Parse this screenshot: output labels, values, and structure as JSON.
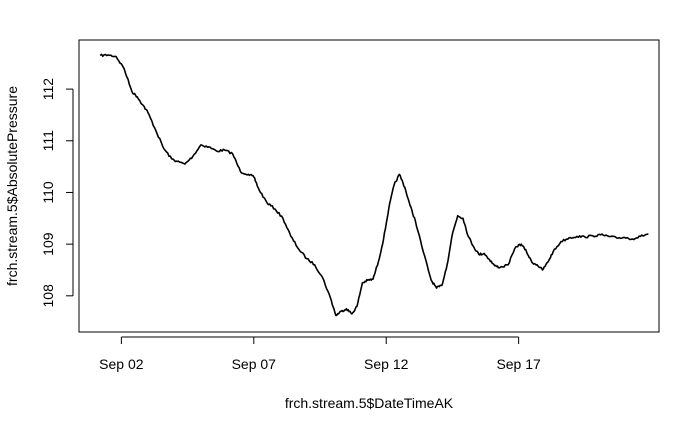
{
  "chart_data": {
    "type": "line",
    "title": "",
    "xlabel": "frch.stream.5$DateTimeAK",
    "ylabel": "frch.stream.5$AbsolutePressure",
    "x_unit": "date (September)",
    "xlim": [
      0.4,
      22.3
    ],
    "ylim": [
      107.3,
      112.95
    ],
    "x_ticks": [
      {
        "value": 2,
        "label": "Sep 02"
      },
      {
        "value": 7,
        "label": "Sep 07"
      },
      {
        "value": 12,
        "label": "Sep 12"
      },
      {
        "value": 17,
        "label": "Sep 17"
      }
    ],
    "y_ticks": [
      {
        "value": 108,
        "label": "108"
      },
      {
        "value": 109,
        "label": "109"
      },
      {
        "value": 110,
        "label": "110"
      },
      {
        "value": 111,
        "label": "111"
      },
      {
        "value": 112,
        "label": "112"
      }
    ],
    "grid": false,
    "legend": "none",
    "line_color": "#000000",
    "series": [
      {
        "x": [
          1.2,
          1.5,
          1.8,
          2.1,
          2.4,
          2.6,
          2.8,
          3.0,
          3.3,
          3.6,
          3.9,
          4.1,
          4.4,
          4.7,
          5.0,
          5.3,
          5.6,
          5.9,
          6.2,
          6.5,
          6.8,
          7.0,
          7.2,
          7.5,
          7.8,
          8.1,
          8.4,
          8.7,
          9.0,
          9.3,
          9.6,
          9.9,
          10.1,
          10.3,
          10.5,
          10.7,
          10.9,
          11.1,
          11.3,
          11.5,
          11.7,
          11.9,
          12.1,
          12.3,
          12.5,
          12.7,
          12.9,
          13.1,
          13.4,
          13.7,
          13.9,
          14.1,
          14.3,
          14.5,
          14.7,
          14.9,
          15.1,
          15.3,
          15.5,
          15.7,
          15.9,
          16.1,
          16.3,
          16.6,
          16.9,
          17.1,
          17.3,
          17.5,
          17.7,
          17.9,
          18.1,
          18.3,
          18.6,
          18.9,
          19.2,
          19.5,
          19.8,
          20.1,
          20.4,
          20.7,
          21.0,
          21.3,
          21.6,
          21.9
        ],
        "y": [
          112.65,
          112.66,
          112.63,
          112.4,
          111.95,
          111.85,
          111.7,
          111.55,
          111.2,
          110.85,
          110.65,
          110.6,
          110.55,
          110.7,
          110.92,
          110.88,
          110.8,
          110.82,
          110.75,
          110.4,
          110.35,
          110.3,
          110.05,
          109.8,
          109.68,
          109.5,
          109.15,
          108.9,
          108.72,
          108.6,
          108.35,
          107.95,
          107.62,
          107.7,
          107.75,
          107.65,
          107.8,
          108.25,
          108.3,
          108.32,
          108.65,
          109.1,
          109.7,
          110.15,
          110.35,
          110.1,
          109.75,
          109.45,
          108.85,
          108.3,
          108.15,
          108.2,
          108.6,
          109.2,
          109.55,
          109.5,
          109.15,
          108.95,
          108.8,
          108.82,
          108.7,
          108.58,
          108.55,
          108.6,
          108.95,
          109.0,
          108.85,
          108.65,
          108.6,
          108.5,
          108.65,
          108.85,
          109.05,
          109.12,
          109.15,
          109.14,
          109.16,
          109.18,
          109.15,
          109.12,
          109.13,
          109.1,
          109.15,
          109.2
        ]
      }
    ]
  }
}
